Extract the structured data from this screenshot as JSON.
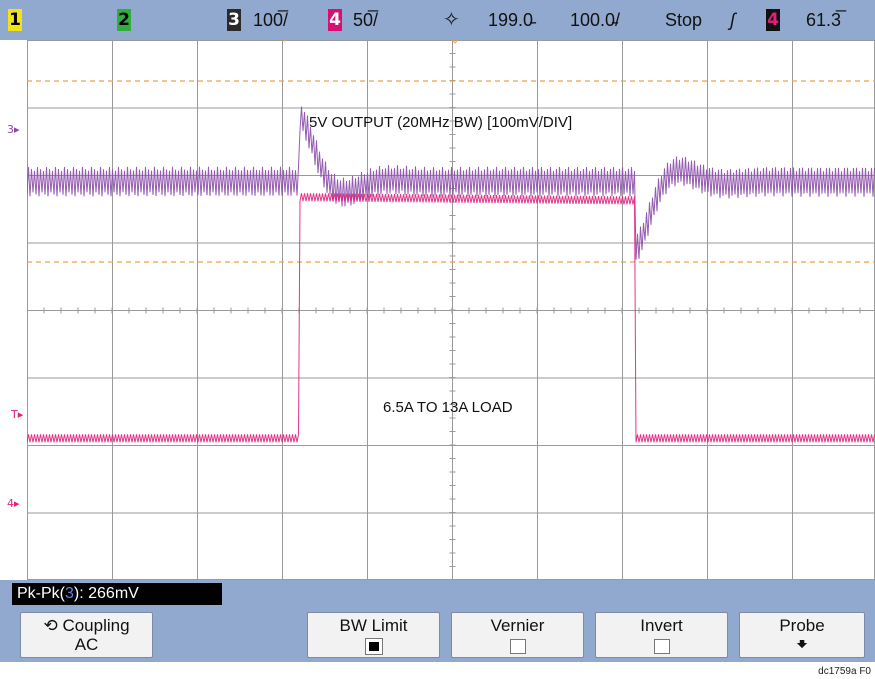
{
  "topbar": {
    "ch1": "1",
    "ch2": "2",
    "ch3": "3",
    "ch3_scale": "100̅/",
    "ch4": "4",
    "ch4_scale": "50̅/",
    "trigger_pos": "199.0̵",
    "time_scale": "100.0̵/",
    "run_state": "Stop",
    "trigger_edge": "ʃ",
    "trigger_source": "4",
    "trigger_level": "61.3̅"
  },
  "screen": {
    "ch3_marker": "3",
    "trigger_marker": "T",
    "ch4_marker": "4",
    "ch3_label": "5V OUTPUT (20MHz BW) [100mV/DIV]",
    "ch4_label": "6.5A TO 13A LOAD"
  },
  "measurement": {
    "prefix": "Pk-Pk(",
    "channel": "3",
    "suffix": "): 266mV"
  },
  "softkeys": {
    "coupling_label": "Coupling",
    "coupling_value": "AC",
    "bw_limit_label": "BW Limit",
    "vernier_label": "Vernier",
    "invert_label": "Invert",
    "probe_label": "Probe"
  },
  "footer": "dc1759a F0",
  "colors": {
    "ch3_trace": "#8a4aa8",
    "ch4_trace": "#e0207a",
    "cursor_dashed": "#f0a040",
    "grid": "#9a9a9a",
    "bar_bg": "#92a9cf"
  },
  "waveforms": {
    "ch3_baseline_div": 2.1,
    "ch4_low_div": 5.9,
    "ch4_high_div": 2.35,
    "step_up_div": 3.2,
    "step_down_div": 7.15
  }
}
